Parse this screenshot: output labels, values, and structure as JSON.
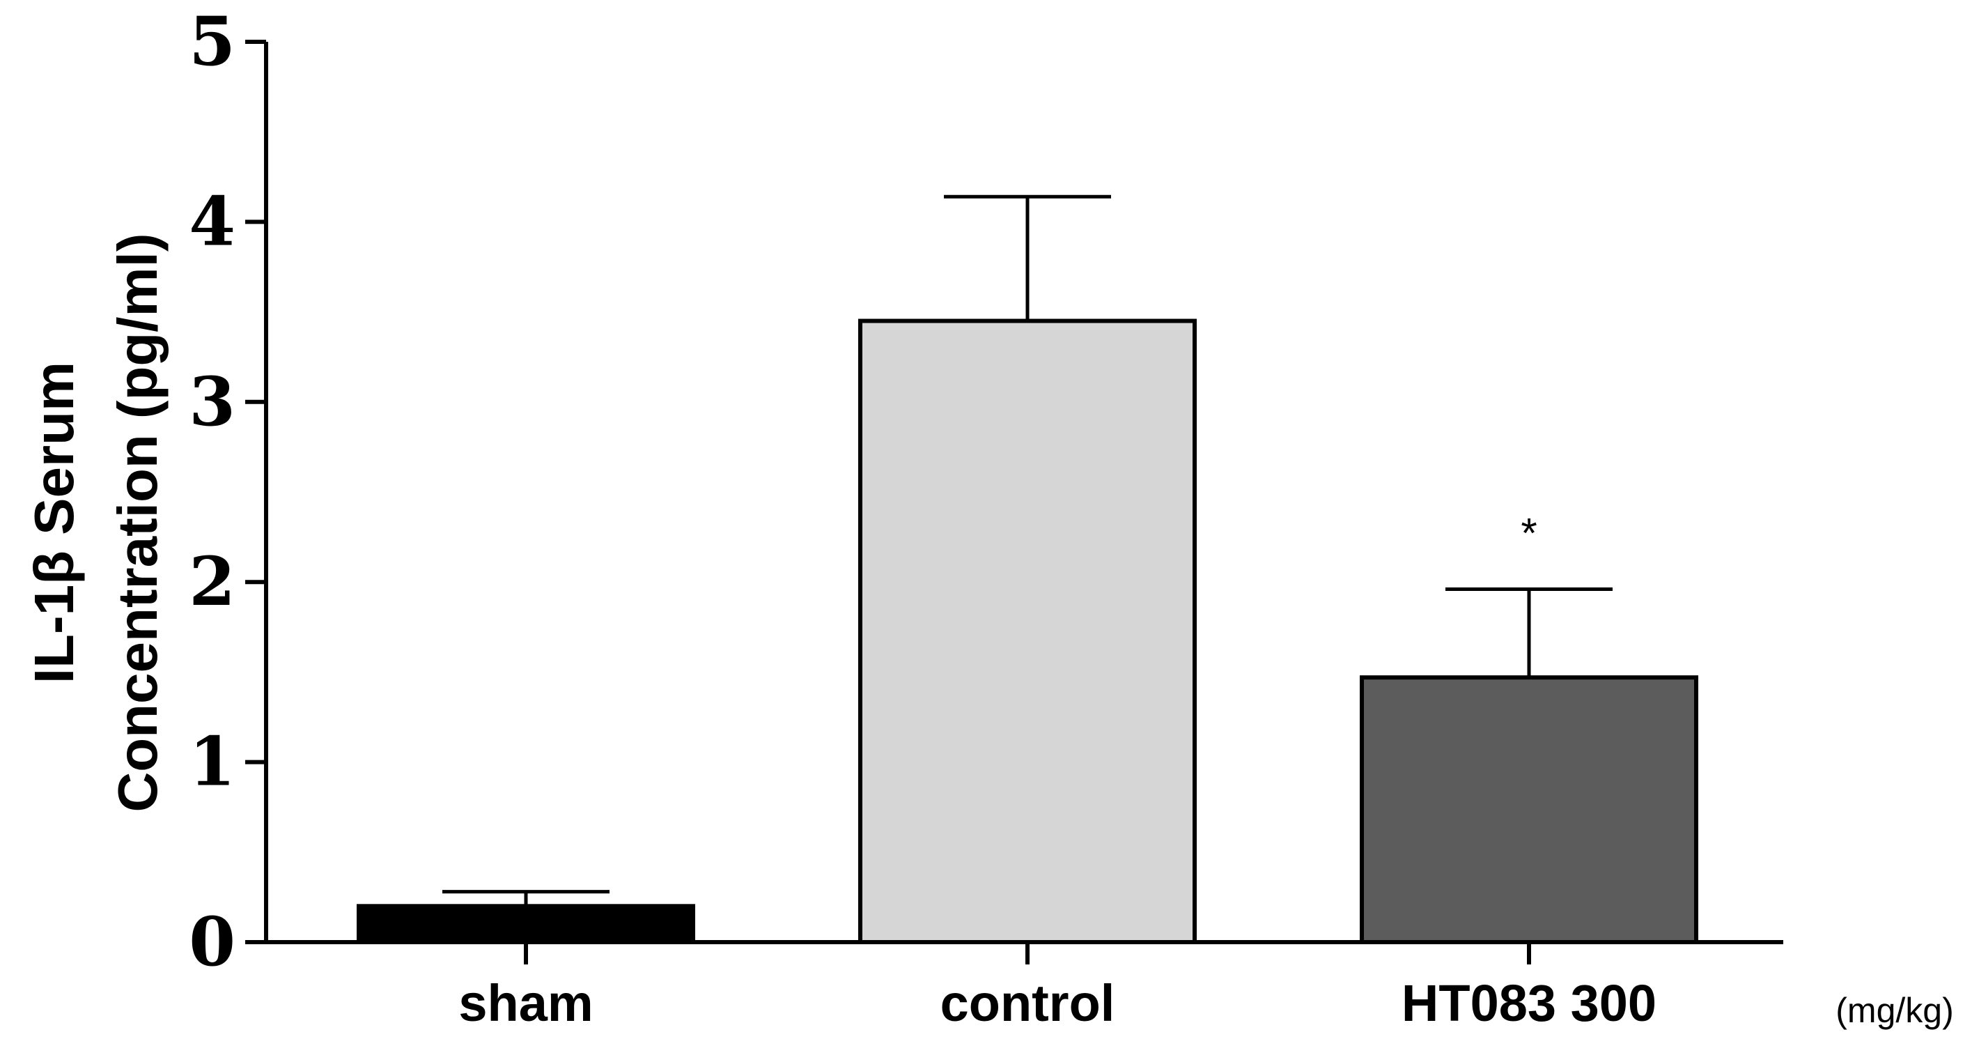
{
  "chart_data": {
    "type": "bar",
    "title": "",
    "ylabel_lines": [
      "IL-1β Serum",
      "Concentration (pg/ml)"
    ],
    "xlabel": "",
    "x_unit_label": "(mg/kg)",
    "ylim": [
      0,
      5
    ],
    "yticks": [
      0,
      1,
      2,
      3,
      4,
      5
    ],
    "grid": false,
    "categories": [
      "sham",
      "control",
      "HT083 300"
    ],
    "values": [
      0.2,
      3.45,
      1.47
    ],
    "errors": [
      0.08,
      0.69,
      0.49
    ],
    "bar_colors": [
      "#000000",
      "#d6d6d6",
      "#5c5c5c"
    ],
    "annotations": [
      "",
      "",
      "*"
    ]
  }
}
